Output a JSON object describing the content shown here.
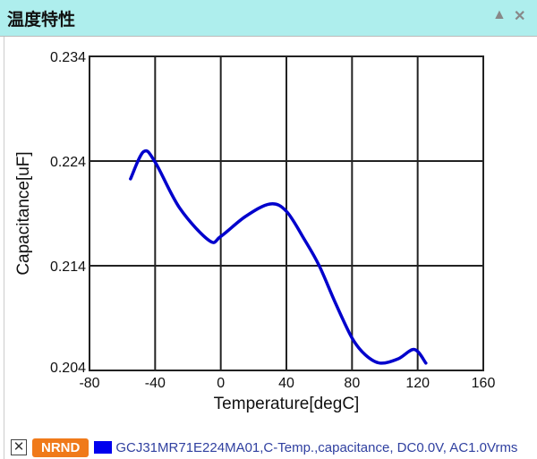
{
  "window": {
    "title": "温度特性",
    "collapse_icon": "triangle-up-icon",
    "close_icon": "close-icon",
    "collapse_label": "▲",
    "close_label": "✕"
  },
  "legend": {
    "remove_label": "✕",
    "badge": "NRND",
    "badge_color": "#f07a1a",
    "series_label": "GCJ31MR71E224MA01,C-Temp.,capacitance, DC0.0V, AC1.0Vrms"
  },
  "chart_data": {
    "type": "line",
    "title": "",
    "xlabel": "Temperature[degC]",
    "ylabel": "Capacitance[uF]",
    "xlim": [
      -80,
      160
    ],
    "ylim": [
      0.204,
      0.234
    ],
    "xticks": [
      "-80",
      "-40",
      "0",
      "40",
      "80",
      "120",
      "160"
    ],
    "yticks": [
      "0.204",
      "0.214",
      "0.224",
      "0.234"
    ],
    "grid": true,
    "series": [
      {
        "color": "#0000cc",
        "x": [
          -55,
          -47,
          -40,
          -25,
          -7,
          0,
          15,
          30,
          40,
          51,
          60,
          70,
          80,
          88,
          97,
          108,
          118,
          125
        ],
        "y": [
          0.2223,
          0.2249,
          0.2239,
          0.2195,
          0.2164,
          0.2168,
          0.2187,
          0.2199,
          0.2192,
          0.2165,
          0.214,
          0.2104,
          0.2071,
          0.2055,
          0.2047,
          0.2051,
          0.206,
          0.2047
        ]
      }
    ]
  }
}
